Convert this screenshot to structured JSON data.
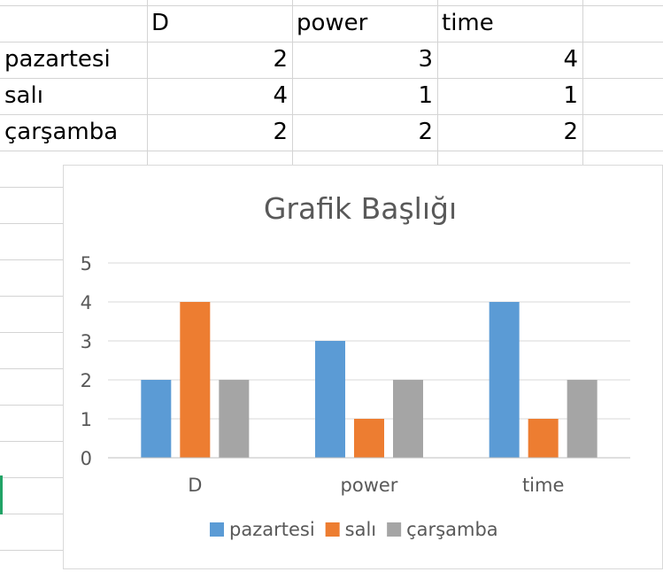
{
  "sheet": {
    "header": [
      "",
      "D",
      "power",
      "time"
    ],
    "rows": [
      [
        "pazartesi",
        "2",
        "3",
        "4"
      ],
      [
        "salı",
        "4",
        "1",
        "1"
      ],
      [
        "çarşamba",
        "2",
        "2",
        "2"
      ]
    ]
  },
  "chart_data": {
    "type": "bar",
    "title": "Grafik Başlığı",
    "categories": [
      "D",
      "power",
      "time"
    ],
    "series": [
      {
        "name": "pazartesi",
        "values": [
          2,
          3,
          4
        ],
        "color": "#5b9bd5"
      },
      {
        "name": "salı",
        "values": [
          4,
          1,
          1
        ],
        "color": "#ed7d31"
      },
      {
        "name": "çarşamba",
        "values": [
          2,
          2,
          2
        ],
        "color": "#a5a5a5"
      }
    ],
    "ylim": [
      0,
      5
    ],
    "yticks": [
      "0",
      "1",
      "2",
      "3",
      "4",
      "5"
    ],
    "xlabel": "",
    "ylabel": "",
    "grid": true,
    "legend_position": "bottom"
  }
}
